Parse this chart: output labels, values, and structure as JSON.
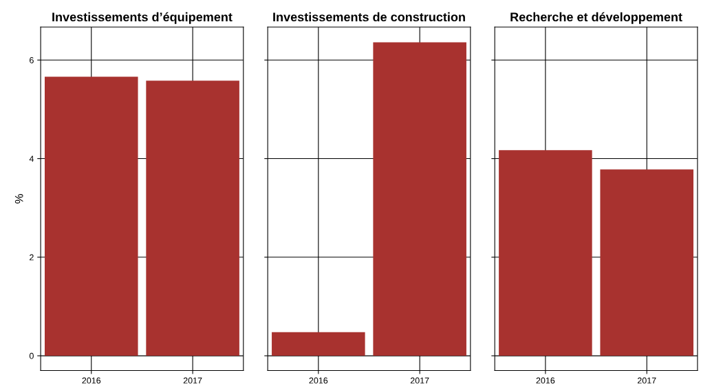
{
  "chart_data": [
    {
      "type": "bar",
      "title": "Investissements d’équipement",
      "ylabel": "%",
      "categories": [
        "2016",
        "2017"
      ],
      "values": [
        5.66,
        5.58
      ],
      "color": "#a8322f",
      "ylim": [
        -0.3,
        6.67
      ],
      "yticks": [
        0,
        2,
        4,
        6
      ],
      "grid": true
    },
    {
      "type": "bar",
      "title": "Investissements de construction",
      "categories": [
        "2016",
        "2017"
      ],
      "values": [
        0.48,
        6.36
      ],
      "color": "#a8322f",
      "ylim": [
        -0.3,
        6.67
      ],
      "yticks": [
        0,
        2,
        4,
        6
      ],
      "grid": true,
      "tick_labels": "x"
    },
    {
      "type": "bar",
      "title": "Recherche et développement",
      "categories": [
        "2016",
        "2017"
      ],
      "values": [
        4.17,
        3.78
      ],
      "color": "#a8322f",
      "ylim": [
        -0.3,
        6.67
      ],
      "yticks": [
        0,
        2,
        4,
        6
      ],
      "grid": true,
      "tick_labels": "x"
    }
  ]
}
